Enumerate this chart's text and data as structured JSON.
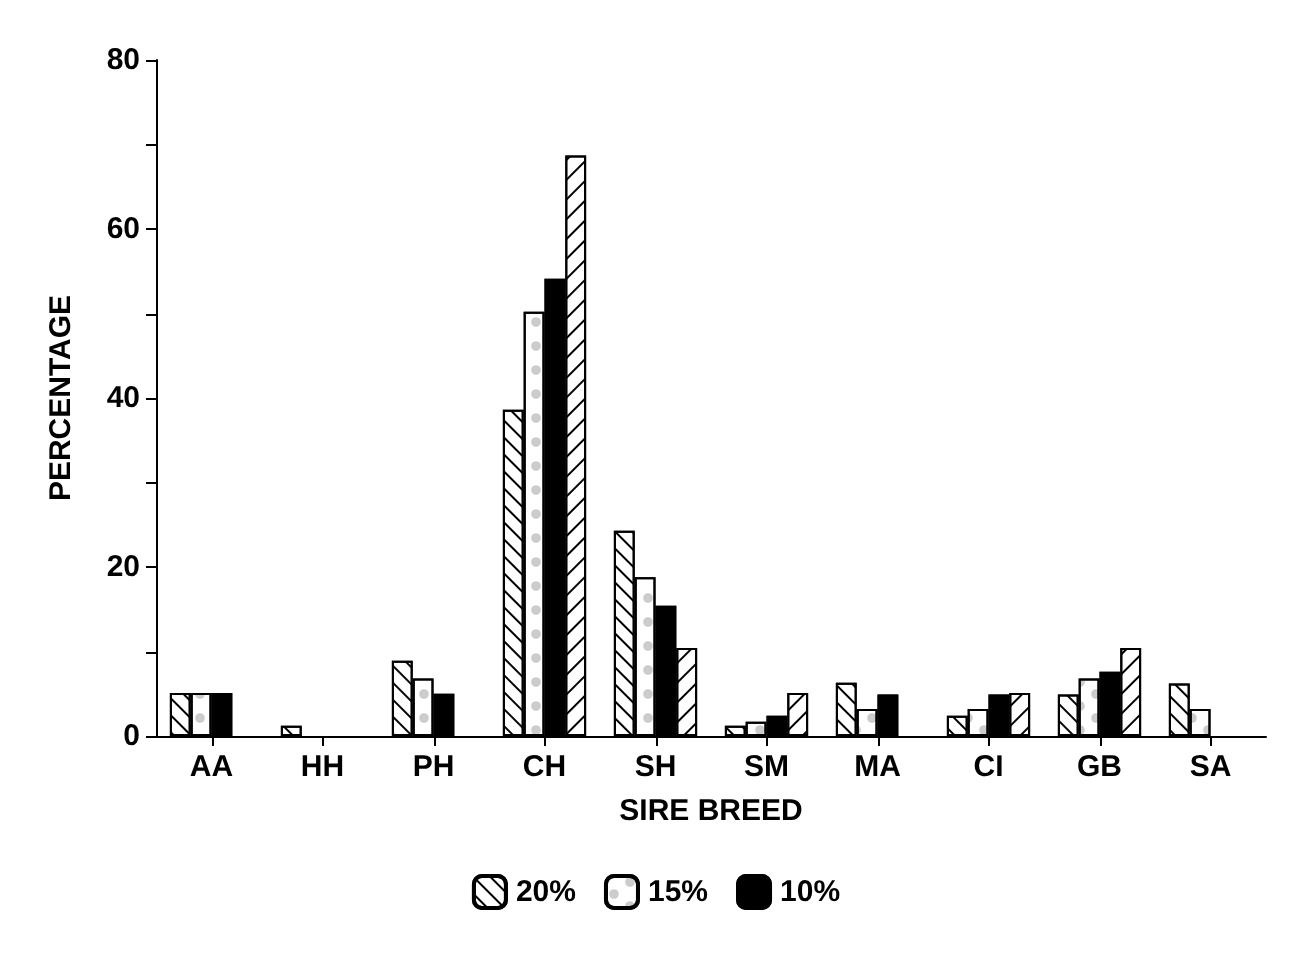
{
  "chart_data": {
    "type": "bar",
    "xlabel": "SIRE BREED",
    "ylabel": "PERCENTAGE",
    "categories": [
      "AA",
      "HH",
      "PH",
      "CH",
      "SH",
      "SM",
      "MA",
      "CI",
      "GB",
      "SA"
    ],
    "series": [
      {
        "name": "20%",
        "color": "#ffffff",
        "values": [
          5.1,
          1.2,
          8.9,
          38.6,
          24.3,
          1.2,
          6.3,
          2.4,
          4.9,
          6.2
        ]
      },
      {
        "name": "15%",
        "color": "#ffffff",
        "values": [
          5.1,
          null,
          6.8,
          50.2,
          18.8,
          1.7,
          3.2,
          3.2,
          6.8,
          3.2
        ]
      },
      {
        "name": "10%",
        "color": "#000000",
        "values": [
          5.1,
          null,
          5.0,
          54.1,
          15.4,
          2.4,
          4.9,
          4.9,
          7.6,
          null
        ]
      },
      {
        "color": "#ffffff",
        "values": [
          null,
          null,
          null,
          68.7,
          10.4,
          5.1,
          null,
          5.1,
          10.4,
          null
        ]
      }
    ],
    "ylim": [
      0,
      80
    ],
    "yticks": [
      0,
      {
        "value": 10,
        "label": null
      },
      20,
      {
        "value": 30,
        "label": null
      },
      40,
      {
        "value": 50,
        "label": null
      },
      60,
      {
        "value": 70,
        "label": null
      },
      80
    ],
    "grid": false,
    "legend": "bottom"
  }
}
